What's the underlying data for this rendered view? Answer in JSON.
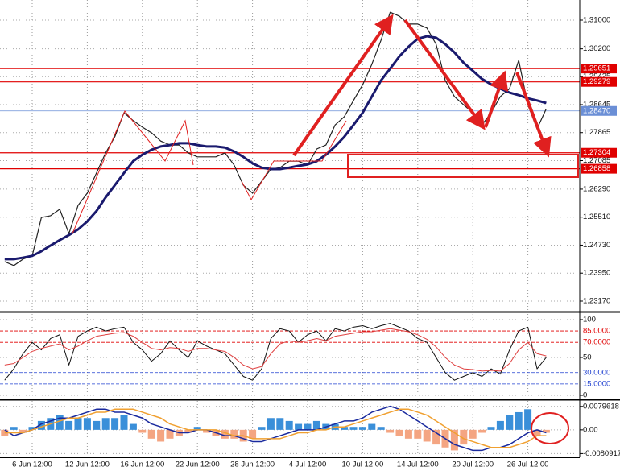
{
  "chart_data": [
    {
      "type": "line",
      "grid": true,
      "ylim": [
        1.22878,
        1.31561
      ],
      "yticks": [
        {
          "value": 1.31,
          "label": "1.31000"
        },
        {
          "value": 1.302,
          "label": "1.30200"
        },
        1.29425,
        1.28645,
        1.27865,
        1.27085,
        {
          "value": 1.2629,
          "label": "1.26290"
        },
        {
          "value": 1.2551,
          "label": "1.25510"
        },
        {
          "value": 1.2473,
          "label": "1.24730"
        },
        {
          "value": 1.2395,
          "label": "1.23950"
        },
        {
          "value": 1.2317,
          "label": "1.23170"
        }
      ],
      "levels": [
        {
          "value": 1.29651,
          "color": "#e00000"
        },
        {
          "value": 1.29279,
          "color": "#e00000"
        },
        {
          "value": 1.2847,
          "label": "1.28470",
          "color": "#6b8fd6"
        },
        {
          "value": 1.27304,
          "color": "#e00000"
        },
        {
          "value": 1.26858,
          "color": "#e00000"
        }
      ],
      "series": [
        {
          "color": "#222222",
          "width": 1.2,
          "values": [
            1.2427,
            1.2416,
            1.2434,
            1.2443,
            1.255,
            1.2555,
            1.2573,
            1.2505,
            1.2584,
            1.2618,
            1.2674,
            1.273,
            1.2775,
            1.2842,
            1.282,
            1.2802,
            1.2786,
            1.2763,
            1.2752,
            1.2752,
            1.273,
            1.2719,
            1.2719,
            1.2719,
            1.273,
            1.2696,
            1.264,
            1.2618,
            1.2651,
            1.2685,
            1.2689,
            1.2707,
            1.2707,
            1.2696,
            1.2741,
            1.2752,
            1.2808,
            1.2831,
            1.2876,
            1.292,
            1.2977,
            1.3044,
            1.3122,
            1.3111,
            1.3089,
            1.3089,
            1.3078,
            1.3033,
            1.2932,
            1.2887,
            1.2864,
            1.2842,
            1.2808,
            1.2842,
            1.2887,
            1.2909,
            1.2988,
            1.2864,
            1.2797,
            1.2853
          ]
        },
        {
          "color": "#1a1a6e",
          "width": 3,
          "values": [
            1.2434,
            1.2434,
            1.2438,
            1.2443,
            1.2456,
            1.2472,
            1.2487,
            1.2501,
            1.2517,
            1.2539,
            1.2568,
            1.2606,
            1.264,
            1.2674,
            1.2707,
            1.2725,
            1.2739,
            1.2748,
            1.2752,
            1.2757,
            1.2757,
            1.2752,
            1.2748,
            1.2748,
            1.2745,
            1.2734,
            1.2719,
            1.2701,
            1.2689,
            1.2685,
            1.2685,
            1.2689,
            1.2694,
            1.2698,
            1.2707,
            1.2725,
            1.2748,
            1.2775,
            1.2808,
            1.2842,
            1.2887,
            1.2932,
            1.2965,
            1.2999,
            1.3026,
            1.3048,
            1.3055,
            1.3051,
            1.3033,
            1.301,
            1.2981,
            1.2959,
            1.2936,
            1.2921,
            1.2909,
            1.2898,
            1.2891,
            1.2882,
            1.2876,
            1.2869
          ]
        }
      ]
    },
    {
      "type": "line",
      "grid": true,
      "ylim": [
        -3.2,
        107.4
      ],
      "yticks": [
        100,
        50,
        0
      ],
      "levels": [
        {
          "value": 85,
          "label": "85.0000",
          "color": "#e00000"
        },
        {
          "value": 70,
          "label": "70.0000",
          "color": "#e00000"
        },
        {
          "value": 30,
          "label": "30.0000",
          "color": "#2040d0"
        },
        {
          "value": 15,
          "label": "15.0000",
          "color": "#2040d0"
        }
      ],
      "series": [
        {
          "color": "#111111",
          "width": 1,
          "values": [
            20,
            35,
            55,
            70,
            60,
            75,
            80,
            40,
            78,
            85,
            90,
            85,
            88,
            90,
            70,
            60,
            45,
            55,
            72,
            60,
            50,
            72,
            65,
            60,
            55,
            40,
            25,
            20,
            35,
            75,
            88,
            85,
            70,
            80,
            85,
            72,
            88,
            85,
            90,
            92,
            88,
            92,
            95,
            90,
            85,
            75,
            70,
            50,
            30,
            20,
            25,
            30,
            25,
            35,
            28,
            60,
            85,
            90,
            35,
            50
          ]
        },
        {
          "color": "#e04040",
          "width": 1,
          "values": [
            40,
            42,
            50,
            58,
            62,
            65,
            68,
            60,
            65,
            72,
            78,
            80,
            82,
            83,
            78,
            70,
            62,
            60,
            63,
            62,
            58,
            62,
            62,
            60,
            58,
            50,
            40,
            35,
            38,
            55,
            68,
            72,
            70,
            72,
            75,
            72,
            78,
            80,
            82,
            84,
            84,
            86,
            88,
            86,
            84,
            80,
            74,
            64,
            50,
            40,
            35,
            34,
            32,
            33,
            32,
            42,
            60,
            70,
            55,
            52
          ]
        }
      ]
    },
    {
      "type": "bar",
      "grid": true,
      "ylim": [
        -0.0088,
        0.00982
      ],
      "yticks": [
        {
          "value": 0.0079618,
          "label": "0.0079618"
        },
        {
          "value": 0,
          "label": "0.00"
        },
        {
          "value": -0.0080917,
          "label": "-0.0080917"
        }
      ],
      "categories": [
        null,
        null,
        null,
        "6 Jun 12:00",
        null,
        null,
        null,
        null,
        null,
        "12 Jun 12:00",
        null,
        null,
        null,
        null,
        null,
        "16 Jun 12:00",
        null,
        null,
        null,
        null,
        null,
        "22 Jun 12:00",
        null,
        null,
        null,
        null,
        null,
        "28 Jun 12:00",
        null,
        null,
        null,
        null,
        null,
        "4 Jul 12:00",
        null,
        null,
        null,
        null,
        null,
        "10 Jul 12:00",
        null,
        null,
        null,
        null,
        null,
        "14 Jul 12:00",
        null,
        null,
        null,
        null,
        null,
        "20 Jul 12:00",
        null,
        null,
        null,
        null,
        null,
        "26 Jul 12:00",
        null,
        null
      ],
      "series": [
        {
          "kind": "bar",
          "color": "#3a8fd9",
          "negative_color": "#f4a582",
          "values": [
            -0.002,
            0.001,
            -0.001,
            0.001,
            0.003,
            0.004,
            0.005,
            0.003,
            0.004,
            0.004,
            0.003,
            0.004,
            0.004,
            0.005,
            0.002,
            -0.001,
            -0.003,
            -0.004,
            -0.003,
            -0.002,
            -0.001,
            0.001,
            -0.001,
            -0.002,
            -0.003,
            -0.003,
            -0.004,
            -0.003,
            0.001,
            0.004,
            0.004,
            0.003,
            0.002,
            0.002,
            0.003,
            0.002,
            0.002,
            0.001,
            0.001,
            0.001,
            0.002,
            0.001,
            -0.001,
            -0.002,
            -0.003,
            -0.003,
            -0.004,
            -0.005,
            -0.006,
            -0.007,
            -0.005,
            -0.003,
            -0.001,
            0.001,
            0.003,
            0.005,
            0.006,
            0.007,
            -0.002,
            -0.001
          ]
        },
        {
          "kind": "line",
          "color": "#1a2a9e",
          "width": 1.5,
          "values": [
            0,
            -0.002,
            -0.001,
            0,
            0.002,
            0.003,
            0.004,
            0.004,
            0.005,
            0.006,
            0.007,
            0.007,
            0.006,
            0.006,
            0.005,
            0.004,
            0.002,
            0.001,
            0,
            -0.001,
            -0.001,
            0,
            0,
            -0.001,
            -0.002,
            -0.002,
            -0.003,
            -0.004,
            -0.004,
            -0.003,
            -0.002,
            -0.001,
            0,
            0,
            0,
            0.001,
            0.002,
            0.003,
            0.003,
            0.004,
            0.006,
            0.007,
            0.008,
            0.007,
            0.005,
            0.003,
            0.001,
            -0.001,
            -0.003,
            -0.005,
            -0.006,
            -0.007,
            -0.007,
            -0.006,
            -0.006,
            -0.005,
            -0.003,
            -0.001,
            0,
            -0.001
          ]
        },
        {
          "kind": "line",
          "color": "#f0a030",
          "width": 1.5,
          "values": [
            -0.001,
            -0.001,
            -0.001,
            0,
            0.001,
            0.002,
            0.003,
            0.004,
            0.004,
            0.005,
            0.006,
            0.006,
            0.007,
            0.007,
            0.007,
            0.006,
            0.005,
            0.004,
            0.002,
            0.001,
            0,
            0,
            0,
            0,
            -0.001,
            -0.002,
            -0.002,
            -0.003,
            -0.003,
            -0.003,
            -0.003,
            -0.002,
            -0.001,
            -0.001,
            0,
            0,
            0.001,
            0.001,
            0.002,
            0.003,
            0.004,
            0.005,
            0.006,
            0.007,
            0.007,
            0.006,
            0.005,
            0.003,
            0.001,
            -0.001,
            -0.003,
            -0.004,
            -0.005,
            -0.006,
            -0.006,
            -0.006,
            -0.005,
            -0.004,
            -0.002,
            -0.002
          ]
        }
      ]
    }
  ]
}
